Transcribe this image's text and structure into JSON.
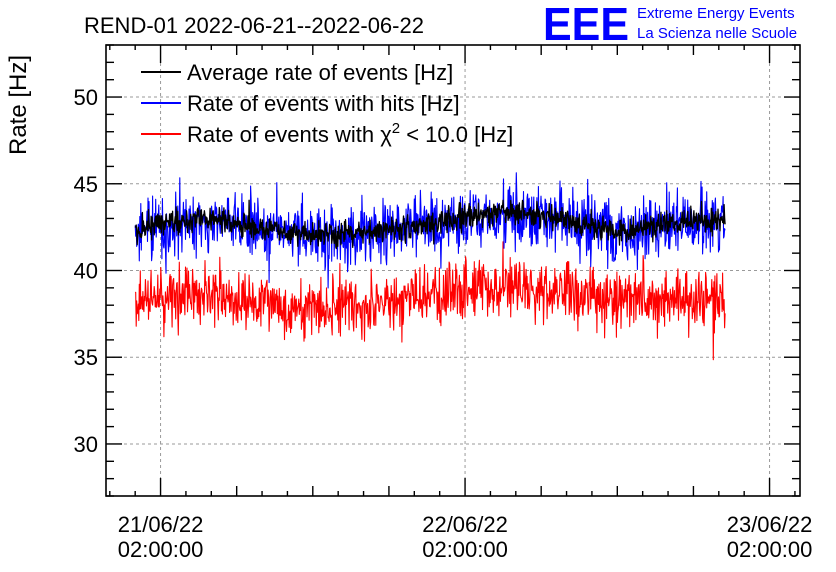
{
  "chart_data": {
    "type": "line",
    "title": "REND-01 2022-06-21--2022-06-22",
    "ylabel": "Rate [Hz]",
    "xlabel": "",
    "ylim": [
      27,
      53
    ],
    "x_range_hours": [
      -4.3,
      50.4
    ],
    "grid": true,
    "x_ticks": [
      {
        "hour": 0,
        "date": "21/06/22",
        "time": "02:00:00"
      },
      {
        "hour": 24,
        "date": "22/06/22",
        "time": "02:00:00"
      },
      {
        "hour": 48,
        "date": "23/06/22",
        "time": "02:00:00"
      }
    ],
    "y_ticks": [
      30,
      35,
      40,
      45,
      50
    ],
    "data_x_range_hours": [
      -2,
      44.5
    ],
    "legend": {
      "position": "top-left",
      "entries": [
        {
          "label": "Average rate of events [Hz]",
          "color": "#000000"
        },
        {
          "label": "Rate of events with hits [Hz]",
          "color": "#0000ff"
        },
        {
          "label": "Rate of events with χ",
          "superscript": "2",
          "suffix": " < 10.0 [Hz]",
          "color": "#ff0000"
        }
      ]
    },
    "series": [
      {
        "name": "Average rate of events [Hz]",
        "color": "#000000",
        "mean": 42.4,
        "noise": 0.35,
        "x": [
          -2,
          0,
          4,
          8,
          12,
          16,
          20,
          24,
          28,
          32,
          36,
          40,
          44.5
        ],
        "values": [
          42.3,
          42.7,
          43.0,
          42.4,
          42.0,
          42.2,
          42.6,
          43.0,
          43.4,
          42.9,
          42.2,
          42.7,
          42.9
        ]
      },
      {
        "name": "Rate of events with hits [Hz]",
        "color": "#0000ff",
        "mean": 42.3,
        "noise": 0.9,
        "x": [
          -2,
          0,
          4,
          8,
          12,
          16,
          20,
          24,
          28,
          32,
          36,
          40,
          44.5
        ],
        "values": [
          42.2,
          42.6,
          42.9,
          42.3,
          41.9,
          42.1,
          42.5,
          42.9,
          43.3,
          42.8,
          42.1,
          42.6,
          42.8
        ]
      },
      {
        "name": "Rate of events with chi2 < 10.0 [Hz]",
        "color": "#ff0000",
        "mean": 38.3,
        "noise": 0.85,
        "x": [
          -2,
          0,
          4,
          8,
          12,
          16,
          20,
          24,
          28,
          32,
          36,
          40,
          44.5
        ],
        "values": [
          38.2,
          38.5,
          38.6,
          38.0,
          37.8,
          38.1,
          38.5,
          38.9,
          39.2,
          38.8,
          38.2,
          38.4,
          38.5
        ]
      }
    ]
  },
  "logo": {
    "letters": "EEE",
    "line1": "Extreme Energy Events",
    "line2": "La Scienza nelle Scuole",
    "color": "#0000ff"
  }
}
